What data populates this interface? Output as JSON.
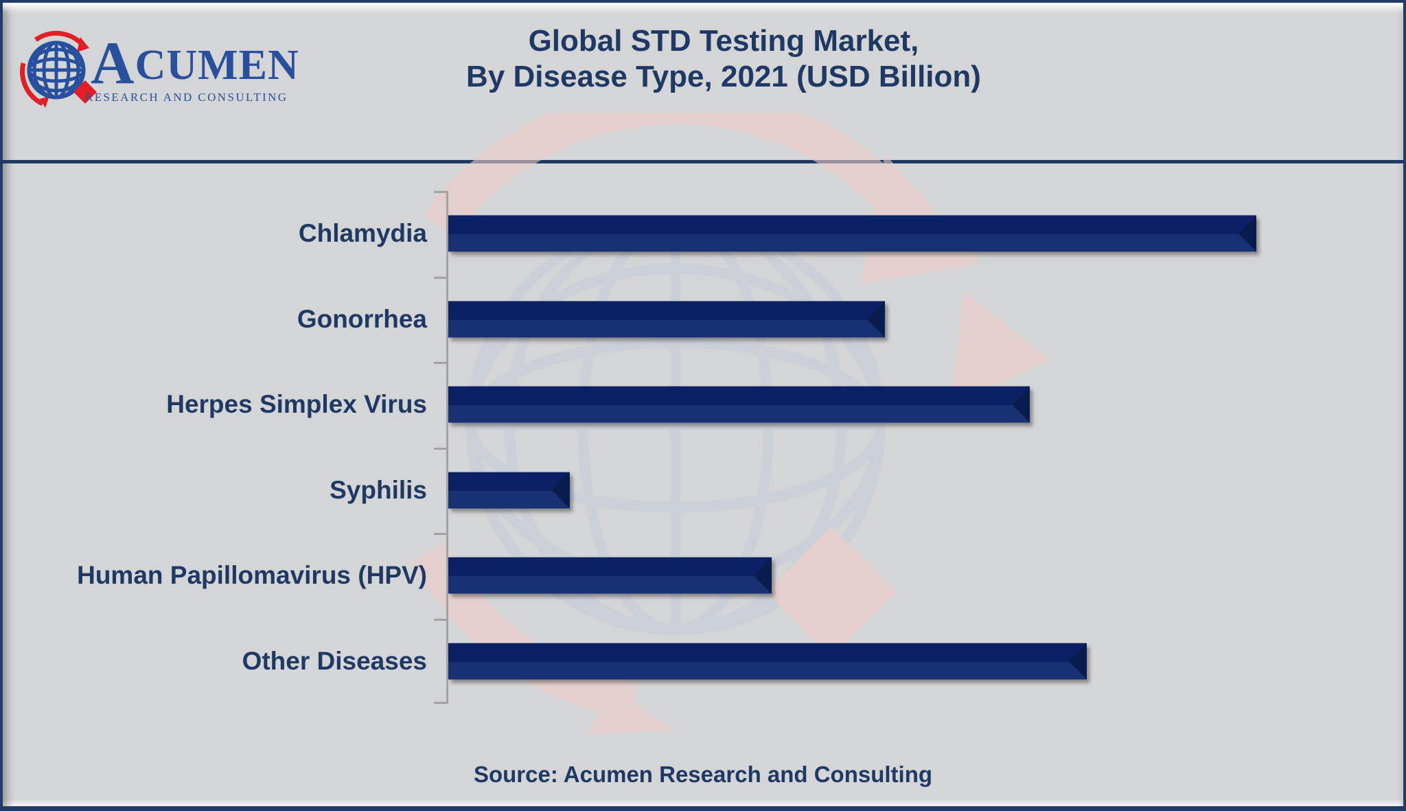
{
  "header": {
    "logo": {
      "brand_display": "CUMEN",
      "brand_initial": "A",
      "tagline": "RESEARCH AND CONSULTING",
      "globe_icon": "globe-with-red-orbit-arrows-and-diamond",
      "brand_color": "#2a4f9c",
      "accent_red": "#e01f26"
    },
    "title_line1": "Global STD Testing Market,",
    "title_line2": "By Disease Type, 2021 (USD Billion)",
    "title_color": "#1f3864"
  },
  "footer": {
    "source": "Source: Acumen Research and Consulting"
  },
  "chart_data": {
    "type": "bar",
    "orientation": "horizontal",
    "title": "Global STD Testing Market, By Disease Type, 2021 (USD Billion)",
    "unit": "USD Billion",
    "categories": [
      "Chlamydia",
      "Gonorrhea",
      "Herpes Simplex Virus",
      "Syphilis",
      "Human Papillomavirus (HPV)",
      "Other Diseases"
    ],
    "values_pct_of_longest_bar": [
      100,
      54,
      72,
      15,
      40,
      79
    ],
    "value_axis_tick_labels": "none shown (value axis unlabeled, bars unlabeled)",
    "legend": "none",
    "gridlines": false,
    "bar_color_top": "#0c2164",
    "bar_color_bottom": "#183173",
    "bar_end_bevel_color": "#0a1c4e",
    "axis_color": "#a3a3a3",
    "background_color": "#d4d5d6",
    "label_color": "#1f3864",
    "watermark": "faded Acumen globe logo behind plot area"
  },
  "layout_constants": {
    "max_bar_width_pct_of_frame": 57.7
  }
}
